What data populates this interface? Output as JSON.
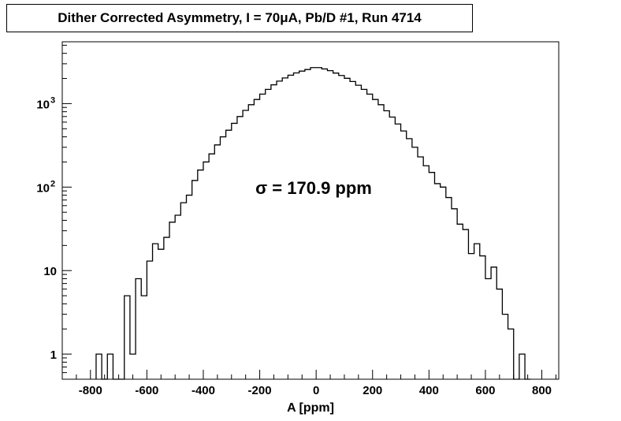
{
  "chart_data": {
    "type": "histogram",
    "title": "Dither Corrected Asymmetry, I = 70μA, Pb/D #1, Run 4714",
    "xlabel": "A [ppm]",
    "ylabel": "",
    "xlim": [
      -900,
      860
    ],
    "ylim": [
      0.5,
      5500
    ],
    "yscale": "log",
    "grid": false,
    "legend": "none",
    "line_color": "#000000",
    "annotation": "σ = 170.9 ppm",
    "x_ticks": [
      -800,
      -600,
      -400,
      -200,
      0,
      200,
      400,
      600,
      800
    ],
    "x_tick_labels": [
      "-800",
      "-600",
      "-400",
      "-200",
      "0",
      "200",
      "400",
      "600",
      "800"
    ],
    "y_ticks": [
      1,
      10,
      100,
      1000
    ],
    "y_tick_labels": [
      {
        "base": "1",
        "exp": ""
      },
      {
        "base": "10",
        "exp": ""
      },
      {
        "base": "10",
        "exp": "2"
      },
      {
        "base": "10",
        "exp": "3"
      }
    ],
    "bin_width": 20,
    "bins": [
      {
        "x0": -780,
        "count": 1
      },
      {
        "x0": -760,
        "count": 0
      },
      {
        "x0": -740,
        "count": 1
      },
      {
        "x0": -720,
        "count": 0
      },
      {
        "x0": -700,
        "count": 0
      },
      {
        "x0": -680,
        "count": 5
      },
      {
        "x0": -660,
        "count": 1
      },
      {
        "x0": -640,
        "count": 8
      },
      {
        "x0": -620,
        "count": 5
      },
      {
        "x0": -600,
        "count": 13
      },
      {
        "x0": -580,
        "count": 21
      },
      {
        "x0": -560,
        "count": 18
      },
      {
        "x0": -540,
        "count": 25
      },
      {
        "x0": -520,
        "count": 38
      },
      {
        "x0": -500,
        "count": 46
      },
      {
        "x0": -480,
        "count": 65
      },
      {
        "x0": -460,
        "count": 80
      },
      {
        "x0": -440,
        "count": 120
      },
      {
        "x0": -420,
        "count": 160
      },
      {
        "x0": -400,
        "count": 200
      },
      {
        "x0": -380,
        "count": 250
      },
      {
        "x0": -360,
        "count": 320
      },
      {
        "x0": -340,
        "count": 400
      },
      {
        "x0": -320,
        "count": 480
      },
      {
        "x0": -300,
        "count": 580
      },
      {
        "x0": -280,
        "count": 700
      },
      {
        "x0": -260,
        "count": 830
      },
      {
        "x0": -240,
        "count": 970
      },
      {
        "x0": -220,
        "count": 1120
      },
      {
        "x0": -200,
        "count": 1300
      },
      {
        "x0": -180,
        "count": 1480
      },
      {
        "x0": -160,
        "count": 1680
      },
      {
        "x0": -140,
        "count": 1860
      },
      {
        "x0": -120,
        "count": 2030
      },
      {
        "x0": -100,
        "count": 2190
      },
      {
        "x0": -80,
        "count": 2330
      },
      {
        "x0": -60,
        "count": 2450
      },
      {
        "x0": -40,
        "count": 2560
      },
      {
        "x0": -20,
        "count": 2700
      },
      {
        "x0": 0,
        "count": 2700
      },
      {
        "x0": 20,
        "count": 2600
      },
      {
        "x0": 40,
        "count": 2480
      },
      {
        "x0": 60,
        "count": 2320
      },
      {
        "x0": 80,
        "count": 2170
      },
      {
        "x0": 100,
        "count": 2010
      },
      {
        "x0": 120,
        "count": 1840
      },
      {
        "x0": 140,
        "count": 1660
      },
      {
        "x0": 160,
        "count": 1480
      },
      {
        "x0": 180,
        "count": 1300
      },
      {
        "x0": 200,
        "count": 1120
      },
      {
        "x0": 220,
        "count": 970
      },
      {
        "x0": 240,
        "count": 820
      },
      {
        "x0": 260,
        "count": 690
      },
      {
        "x0": 280,
        "count": 570
      },
      {
        "x0": 300,
        "count": 470
      },
      {
        "x0": 320,
        "count": 380
      },
      {
        "x0": 340,
        "count": 300
      },
      {
        "x0": 360,
        "count": 230
      },
      {
        "x0": 380,
        "count": 180
      },
      {
        "x0": 400,
        "count": 150
      },
      {
        "x0": 420,
        "count": 110
      },
      {
        "x0": 440,
        "count": 100
      },
      {
        "x0": 460,
        "count": 75
      },
      {
        "x0": 480,
        "count": 55
      },
      {
        "x0": 500,
        "count": 36
      },
      {
        "x0": 520,
        "count": 31
      },
      {
        "x0": 540,
        "count": 16
      },
      {
        "x0": 560,
        "count": 21
      },
      {
        "x0": 580,
        "count": 15
      },
      {
        "x0": 600,
        "count": 8
      },
      {
        "x0": 620,
        "count": 11
      },
      {
        "x0": 640,
        "count": 6
      },
      {
        "x0": 660,
        "count": 3
      },
      {
        "x0": 680,
        "count": 2
      },
      {
        "x0": 700,
        "count": 0
      },
      {
        "x0": 720,
        "count": 1
      },
      {
        "x0": 740,
        "count": 0
      }
    ]
  }
}
